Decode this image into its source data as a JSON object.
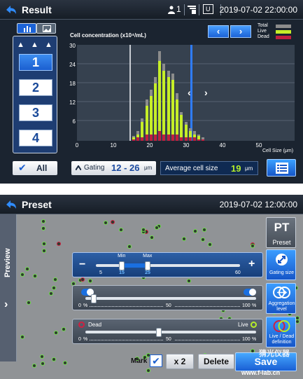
{
  "result": {
    "title": "Result",
    "datetime": "2019-07-02  22:00:00",
    "status": {
      "user_count": "1",
      "mode_badge": "U"
    },
    "wells": [
      "1",
      "2",
      "3",
      "4"
    ],
    "active_well": "1",
    "well_arrows": "▲ ▲ ▲",
    "all_label": "All",
    "gating_label": "Gating",
    "gating_value": "12 - 26",
    "gating_unit": "μm",
    "avg_label": "Average cell size",
    "avg_value": "19",
    "avg_unit": "μm",
    "colors": {
      "total": "#8c8c8c",
      "live": "#c6ee28",
      "dead": "#c02040",
      "accent": "#1b62d6"
    }
  },
  "chart_data": {
    "type": "bar",
    "title": "Cell concentration (x10⁴/mL)",
    "xlabel": "Cell Size (μm)",
    "ylabel": "",
    "xlim": [
      0,
      50
    ],
    "ylim": [
      0,
      30
    ],
    "xticks": [
      "0",
      "10",
      "20",
      "30",
      "40",
      "50"
    ],
    "yticks": [
      "6",
      "12",
      "18",
      "24",
      "30"
    ],
    "legend": [
      "Total",
      "Live",
      "Dead"
    ],
    "legend_position": "top-right",
    "gating_range": [
      12,
      26
    ],
    "x": [
      13,
      14,
      15,
      16,
      17,
      18,
      19,
      20,
      21,
      22,
      23,
      24,
      25,
      26,
      27,
      28,
      29
    ],
    "series": [
      {
        "name": "Total",
        "values": [
          1.5,
          3,
          7,
          13,
          16,
          20,
          28,
          24,
          22,
          21,
          15,
          9,
          6,
          4,
          3,
          2,
          1
        ]
      },
      {
        "name": "Live",
        "values": [
          1,
          2,
          6,
          11,
          14,
          18,
          25,
          22,
          20,
          19,
          13,
          8,
          5,
          3,
          2,
          1.5,
          0.5
        ]
      },
      {
        "name": "Dead",
        "values": [
          0.5,
          1,
          1,
          2,
          2,
          2,
          3,
          2,
          2,
          2,
          2,
          1,
          1,
          1,
          1,
          0.5,
          0.5
        ]
      }
    ]
  },
  "preset": {
    "title": "Preset",
    "datetime": "2019-07-02  12:00:00",
    "preview_label": "Preview",
    "pt_button": {
      "title": "PT",
      "label": "Preset"
    },
    "gating": {
      "min_label": "Min",
      "max_label": "Max",
      "range_min": "5",
      "range_max": "60",
      "value_min": "15",
      "value_max": "25",
      "minus": "−",
      "plus": "+",
      "button_label": "Gating size",
      "min_fraction": 0.18,
      "max_fraction": 0.36
    },
    "aggregation": {
      "tick_0": "0",
      "tick_50": "50",
      "tick_100": "100",
      "unit": "%",
      "value_fraction": 0.05,
      "button_label": "Aggregation level"
    },
    "live_dead": {
      "dead_label": "Dead",
      "live_label": "Live",
      "tick_0": "0",
      "tick_50": "50",
      "tick_100": "100",
      "unit": "%",
      "value_fraction": 0.43,
      "button_label": "Live / Dead definition"
    },
    "mark_label": "Mark",
    "x2_label": "x 2",
    "delete_label": "Delete",
    "save_label": "Save",
    "watermark": "www.f-lab.cn",
    "watermark_cn": "猜光仪器"
  }
}
